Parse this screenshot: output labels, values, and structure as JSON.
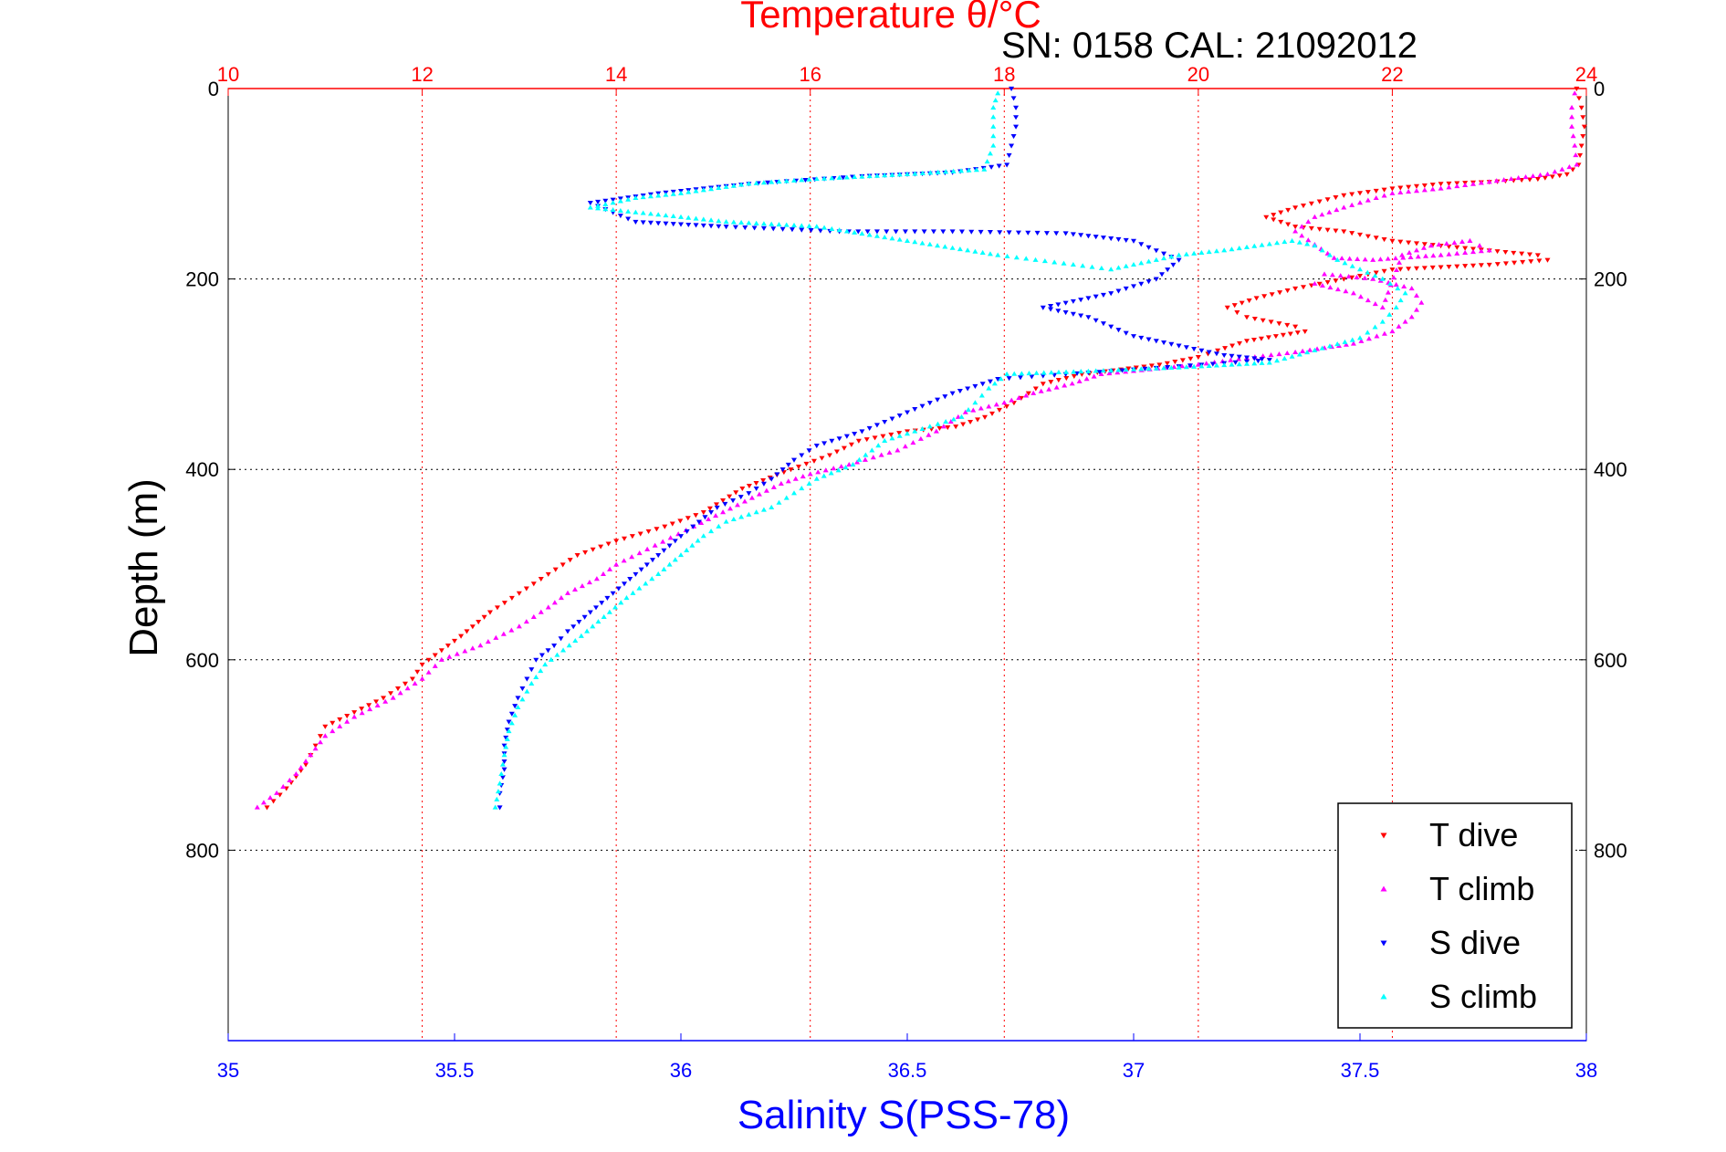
{
  "chart_data": {
    "type": "scatter",
    "title": "Temperature θ/°C",
    "subtitle": "SN: 0158  CAL: 21092012",
    "ylabel": "Depth (m)",
    "xlabel_bottom": "Salinity S(PSS-78)",
    "grid": true,
    "legend_position": "bottom-right",
    "y_axis": {
      "range": [
        0,
        1000
      ],
      "reversed": true,
      "ticks": [
        0,
        200,
        400,
        600,
        800
      ],
      "tick_labels": [
        "0",
        "200",
        "400",
        "600",
        "800"
      ]
    },
    "x_axis_top": {
      "quantity": "temperature",
      "range": [
        10,
        24
      ],
      "ticks": [
        10,
        12,
        14,
        16,
        18,
        20,
        22,
        24
      ],
      "tick_labels": [
        "10",
        "12",
        "14",
        "16",
        "18",
        "20",
        "22",
        "24"
      ],
      "color": "#ff0000"
    },
    "x_axis_bottom": {
      "quantity": "salinity",
      "range": [
        35,
        38
      ],
      "ticks": [
        35,
        35.5,
        36,
        36.5,
        37,
        37.5,
        38
      ],
      "tick_labels": [
        "35",
        "35.5",
        "36",
        "36.5",
        "37",
        "37.5",
        "38"
      ],
      "color": "#0000ff"
    },
    "series": [
      {
        "name": "T dive",
        "axis": "top",
        "color": "#ff0000",
        "marker": "triangle-down",
        "points": [
          [
            23.9,
            0
          ],
          [
            23.95,
            20
          ],
          [
            23.98,
            40
          ],
          [
            23.95,
            60
          ],
          [
            23.92,
            80
          ],
          [
            23.8,
            90
          ],
          [
            23.5,
            95
          ],
          [
            23.0,
            98
          ],
          [
            22.5,
            100
          ],
          [
            22.0,
            105
          ],
          [
            21.5,
            112
          ],
          [
            21.0,
            125
          ],
          [
            20.7,
            135
          ],
          [
            21.0,
            145
          ],
          [
            21.5,
            150
          ],
          [
            22.0,
            160
          ],
          [
            22.5,
            165
          ],
          [
            23.0,
            170
          ],
          [
            23.5,
            175
          ],
          [
            23.6,
            180
          ],
          [
            23.0,
            185
          ],
          [
            22.0,
            190
          ],
          [
            21.5,
            200
          ],
          [
            21.0,
            210
          ],
          [
            20.6,
            220
          ],
          [
            20.3,
            230
          ],
          [
            20.5,
            240
          ],
          [
            21.0,
            250
          ],
          [
            21.1,
            255
          ],
          [
            20.5,
            265
          ],
          [
            20.2,
            275
          ],
          [
            20.0,
            282
          ],
          [
            19.6,
            290
          ],
          [
            19.2,
            295
          ],
          [
            18.8,
            300
          ],
          [
            18.4,
            310
          ],
          [
            18.1,
            330
          ],
          [
            17.8,
            345
          ],
          [
            17.5,
            355
          ],
          [
            17.0,
            360
          ],
          [
            16.5,
            370
          ],
          [
            16.2,
            385
          ],
          [
            15.8,
            400
          ],
          [
            15.3,
            420
          ],
          [
            14.9,
            445
          ],
          [
            14.5,
            460
          ],
          [
            14.0,
            475
          ],
          [
            13.6,
            490
          ],
          [
            13.3,
            510
          ],
          [
            13.0,
            530
          ],
          [
            12.7,
            550
          ],
          [
            12.4,
            575
          ],
          [
            12.2,
            590
          ],
          [
            12.0,
            605
          ],
          [
            11.9,
            620
          ],
          [
            11.6,
            640
          ],
          [
            11.3,
            655
          ],
          [
            11.0,
            670
          ],
          [
            10.9,
            690
          ],
          [
            10.8,
            710
          ],
          [
            10.6,
            735
          ],
          [
            10.4,
            755
          ]
        ]
      },
      {
        "name": "T climb",
        "axis": "top",
        "color": "#ff00ff",
        "marker": "triangle-up",
        "points": [
          [
            10.3,
            755
          ],
          [
            10.5,
            740
          ],
          [
            10.7,
            720
          ],
          [
            10.85,
            700
          ],
          [
            11.0,
            680
          ],
          [
            11.3,
            660
          ],
          [
            11.7,
            640
          ],
          [
            12.0,
            620
          ],
          [
            12.2,
            600
          ],
          [
            12.6,
            585
          ],
          [
            13.0,
            565
          ],
          [
            13.3,
            545
          ],
          [
            13.5,
            530
          ],
          [
            13.8,
            515
          ],
          [
            14.0,
            500
          ],
          [
            14.4,
            480
          ],
          [
            14.8,
            460
          ],
          [
            15.1,
            445
          ],
          [
            15.4,
            430
          ],
          [
            15.7,
            415
          ],
          [
            16.0,
            405
          ],
          [
            16.4,
            395
          ],
          [
            16.9,
            380
          ],
          [
            17.3,
            360
          ],
          [
            17.6,
            340
          ],
          [
            18.0,
            330
          ],
          [
            18.3,
            320
          ],
          [
            18.7,
            310
          ],
          [
            19.0,
            300
          ],
          [
            19.5,
            295
          ],
          [
            20.0,
            290
          ],
          [
            20.5,
            283
          ],
          [
            21.0,
            277
          ],
          [
            21.6,
            268
          ],
          [
            22.0,
            255
          ],
          [
            22.2,
            240
          ],
          [
            22.3,
            225
          ],
          [
            22.2,
            210
          ],
          [
            21.8,
            200
          ],
          [
            21.3,
            195
          ],
          [
            21.2,
            205
          ],
          [
            21.6,
            215
          ],
          [
            21.9,
            230
          ],
          [
            22.1,
            175
          ],
          [
            22.4,
            165
          ],
          [
            22.8,
            160
          ],
          [
            23.0,
            170
          ],
          [
            22.5,
            175
          ],
          [
            21.8,
            180
          ],
          [
            21.4,
            178
          ],
          [
            21.0,
            150
          ],
          [
            21.2,
            135
          ],
          [
            21.5,
            125
          ],
          [
            22.0,
            110
          ],
          [
            22.5,
            105
          ],
          [
            23.0,
            98
          ],
          [
            23.6,
            90
          ],
          [
            23.9,
            80
          ],
          [
            23.88,
            60
          ],
          [
            23.85,
            40
          ],
          [
            23.85,
            20
          ],
          [
            23.88,
            5
          ]
        ]
      },
      {
        "name": "S dive",
        "axis": "bottom",
        "color": "#0000ff",
        "marker": "triangle-down",
        "points": [
          [
            36.73,
            0
          ],
          [
            36.74,
            20
          ],
          [
            36.74,
            40
          ],
          [
            36.73,
            60
          ],
          [
            36.72,
            80
          ],
          [
            36.6,
            88
          ],
          [
            36.4,
            92
          ],
          [
            36.15,
            100
          ],
          [
            35.95,
            110
          ],
          [
            35.8,
            120
          ],
          [
            35.9,
            140
          ],
          [
            36.1,
            145
          ],
          [
            36.35,
            150
          ],
          [
            36.6,
            150
          ],
          [
            36.85,
            152
          ],
          [
            37.0,
            160
          ],
          [
            37.1,
            180
          ],
          [
            37.05,
            200
          ],
          [
            36.95,
            215
          ],
          [
            36.8,
            230
          ],
          [
            36.9,
            240
          ],
          [
            37.0,
            260
          ],
          [
            37.1,
            270
          ],
          [
            37.2,
            280
          ],
          [
            37.3,
            285
          ],
          [
            37.0,
            295
          ],
          [
            36.7,
            305
          ],
          [
            36.6,
            320
          ],
          [
            36.5,
            340
          ],
          [
            36.4,
            360
          ],
          [
            36.3,
            375
          ],
          [
            36.25,
            390
          ],
          [
            36.2,
            410
          ],
          [
            36.15,
            425
          ],
          [
            36.08,
            440
          ],
          [
            36.0,
            470
          ],
          [
            35.95,
            490
          ],
          [
            35.9,
            510
          ],
          [
            35.85,
            530
          ],
          [
            35.8,
            550
          ],
          [
            35.75,
            570
          ],
          [
            35.72,
            585
          ],
          [
            35.68,
            600
          ],
          [
            35.66,
            620
          ],
          [
            35.64,
            640
          ],
          [
            35.62,
            665
          ],
          [
            35.61,
            690
          ],
          [
            35.61,
            715
          ],
          [
            35.6,
            740
          ],
          [
            35.6,
            755
          ]
        ]
      },
      {
        "name": "S climb",
        "axis": "bottom",
        "color": "#00ffff",
        "marker": "triangle-up",
        "points": [
          [
            35.59,
            755
          ],
          [
            35.6,
            730
          ],
          [
            35.61,
            700
          ],
          [
            35.62,
            675
          ],
          [
            35.64,
            650
          ],
          [
            35.67,
            625
          ],
          [
            35.7,
            605
          ],
          [
            35.74,
            590
          ],
          [
            35.78,
            575
          ],
          [
            35.83,
            555
          ],
          [
            35.88,
            535
          ],
          [
            35.95,
            510
          ],
          [
            36.0,
            490
          ],
          [
            36.05,
            470
          ],
          [
            36.1,
            455
          ],
          [
            36.2,
            440
          ],
          [
            36.25,
            425
          ],
          [
            36.3,
            410
          ],
          [
            36.38,
            395
          ],
          [
            36.45,
            370
          ],
          [
            36.55,
            355
          ],
          [
            36.62,
            345
          ],
          [
            36.65,
            330
          ],
          [
            36.68,
            315
          ],
          [
            36.72,
            300
          ],
          [
            36.9,
            297
          ],
          [
            37.1,
            293
          ],
          [
            37.3,
            288
          ],
          [
            37.4,
            275
          ],
          [
            37.5,
            262
          ],
          [
            37.55,
            245
          ],
          [
            37.58,
            230
          ],
          [
            37.6,
            215
          ],
          [
            37.55,
            200
          ],
          [
            37.45,
            180
          ],
          [
            37.4,
            165
          ],
          [
            37.35,
            160
          ],
          [
            37.2,
            170
          ],
          [
            37.1,
            175
          ],
          [
            37.0,
            185
          ],
          [
            36.95,
            190
          ],
          [
            36.7,
            175
          ],
          [
            36.5,
            160
          ],
          [
            36.3,
            145
          ],
          [
            36.1,
            140
          ],
          [
            35.9,
            130
          ],
          [
            35.8,
            125
          ],
          [
            35.9,
            115
          ],
          [
            36.0,
            110
          ],
          [
            36.15,
            100
          ],
          [
            36.3,
            95
          ],
          [
            36.5,
            90
          ],
          [
            36.67,
            85
          ],
          [
            36.69,
            60
          ],
          [
            36.69,
            40
          ],
          [
            36.69,
            20
          ],
          [
            36.7,
            5
          ]
        ]
      }
    ]
  },
  "legend": {
    "items": [
      "T dive",
      "T climb",
      "S dive",
      "S climb"
    ]
  }
}
